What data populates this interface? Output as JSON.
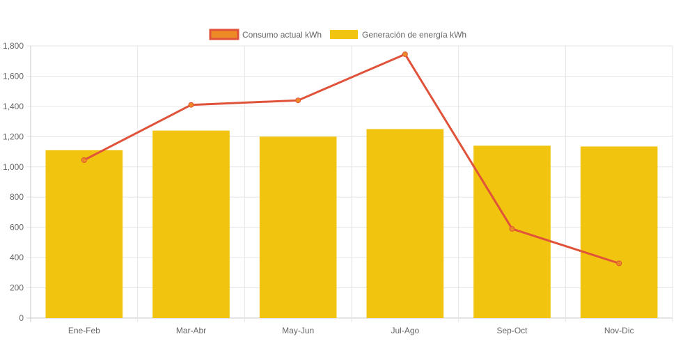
{
  "chart_data": {
    "type": "bar",
    "title": "",
    "xlabel": "",
    "ylabel": "",
    "categories": [
      "Ene-Feb",
      "Mar-Abr",
      "May-Jun",
      "Jul-Ago",
      "Sep-Oct",
      "Nov-Dic"
    ],
    "ylim": [
      0,
      1800
    ],
    "yticks": [
      0,
      200,
      400,
      600,
      800,
      1000,
      1200,
      1400,
      1600,
      1800
    ],
    "ytick_labels": [
      "0",
      "200",
      "400",
      "600",
      "800",
      "1,000",
      "1,200",
      "1,400",
      "1,600",
      "1,800"
    ],
    "grid": true,
    "legend_position": "top-center",
    "series": [
      {
        "name": "Consumo actual kWh",
        "type": "line",
        "values": [
          1045,
          1410,
          1440,
          1745,
          590,
          362
        ],
        "color": "#e0523a",
        "legend_fill": "#ec8a25"
      },
      {
        "name": "Generación de energía kWh",
        "type": "bar",
        "values": [
          1110,
          1240,
          1200,
          1250,
          1140,
          1135
        ],
        "color": "#f1c40f"
      }
    ]
  }
}
